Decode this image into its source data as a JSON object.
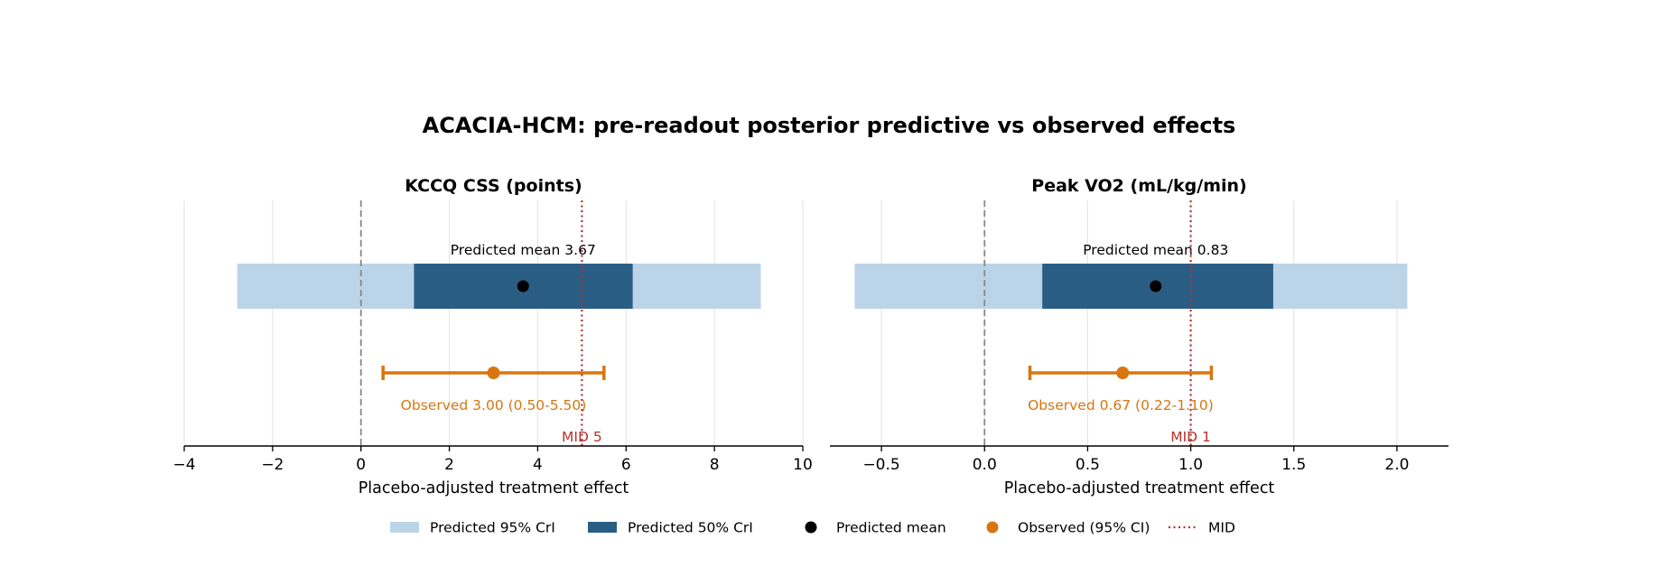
{
  "figure": {
    "title": "ACACIA-HCM: pre-readout posterior predictive vs observed effects"
  },
  "colors": {
    "cri95": "#bcd4e8",
    "cri50": "#2a5d84",
    "mean": "#000000",
    "observed": "#d9750f",
    "mid": "#b5322b",
    "zero_line": "#888888",
    "grid": "#e6e6e6"
  },
  "legend": {
    "placement": "bottom-center",
    "items": [
      {
        "label": "Predicted 95% CrI",
        "icon": "patch-light-blue"
      },
      {
        "label": "Predicted 50% CrI",
        "icon": "patch-dark-blue"
      },
      {
        "label": "Predicted mean",
        "icon": "black-dot"
      },
      {
        "label": "Observed (95% CI)",
        "icon": "orange-dot"
      },
      {
        "label": "MID",
        "icon": "red-dotted-line"
      }
    ]
  },
  "chart_data": [
    {
      "type": "interval",
      "title": "KCCQ CSS (points)",
      "xlabel": "Placebo-adjusted treatment effect",
      "xlim": [
        -4,
        10
      ],
      "xticks": [
        -4,
        -2,
        0,
        2,
        4,
        6,
        8,
        10
      ],
      "xtick_labels": [
        "−4",
        "−2",
        "0",
        "2",
        "4",
        "6",
        "8",
        "10"
      ],
      "grid": "vertical",
      "predicted": {
        "cri95": [
          -2.8,
          9.05
        ],
        "cri50": [
          1.2,
          6.15
        ],
        "mean": 3.67
      },
      "predicted_label": "Predicted mean 3.67",
      "observed": {
        "estimate": 3.0,
        "ci": [
          0.5,
          5.5
        ]
      },
      "observed_label": "Observed 3.00 (0.50-5.50)",
      "mid": 5,
      "mid_label": "MID 5",
      "null_line": 0
    },
    {
      "type": "interval",
      "title": "Peak VO2 (mL/kg/min)",
      "xlabel": "Placebo-adjusted treatment effect",
      "xlim": [
        -0.75,
        2.25
      ],
      "xticks": [
        -0.5,
        0.0,
        0.5,
        1.0,
        1.5,
        2.0
      ],
      "xtick_labels": [
        "−0.5",
        "0.0",
        "0.5",
        "1.0",
        "1.5",
        "2.0"
      ],
      "grid": "vertical",
      "predicted": {
        "cri95": [
          -0.63,
          2.05
        ],
        "cri50": [
          0.28,
          1.4
        ],
        "mean": 0.83
      },
      "predicted_label": "Predicted mean 0.83",
      "observed": {
        "estimate": 0.67,
        "ci": [
          0.22,
          1.1
        ]
      },
      "observed_label": "Observed 0.67 (0.22-1.10)",
      "mid": 1,
      "mid_label": "MID 1",
      "null_line": 0
    }
  ]
}
